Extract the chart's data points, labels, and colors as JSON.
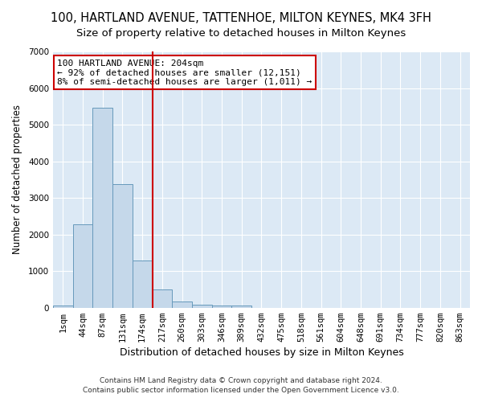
{
  "title": "100, HARTLAND AVENUE, TATTENHOE, MILTON KEYNES, MK4 3FH",
  "subtitle": "Size of property relative to detached houses in Milton Keynes",
  "xlabel": "Distribution of detached houses by size in Milton Keynes",
  "ylabel": "Number of detached properties",
  "footer_line1": "Contains HM Land Registry data © Crown copyright and database right 2024.",
  "footer_line2": "Contains public sector information licensed under the Open Government Licence v3.0.",
  "bar_labels": [
    "1sqm",
    "44sqm",
    "87sqm",
    "131sqm",
    "174sqm",
    "217sqm",
    "260sqm",
    "303sqm",
    "346sqm",
    "389sqm",
    "432sqm",
    "475sqm",
    "518sqm",
    "561sqm",
    "604sqm",
    "648sqm",
    "691sqm",
    "734sqm",
    "777sqm",
    "820sqm",
    "863sqm"
  ],
  "bar_values": [
    70,
    2270,
    5470,
    3380,
    1300,
    500,
    175,
    90,
    65,
    50,
    0,
    0,
    0,
    0,
    0,
    0,
    0,
    0,
    0,
    0,
    0
  ],
  "bar_color": "#c5d8ea",
  "bar_edge_color": "#6699bb",
  "vline_color": "#cc0000",
  "vline_x_index": 4.5,
  "annotation_text": "100 HARTLAND AVENUE: 204sqm\n← 92% of detached houses are smaller (12,151)\n8% of semi-detached houses are larger (1,011) →",
  "annotation_box_facecolor": "#ffffff",
  "annotation_box_edgecolor": "#cc0000",
  "ylim": [
    0,
    7000
  ],
  "yticks": [
    0,
    1000,
    2000,
    3000,
    4000,
    5000,
    6000,
    7000
  ],
  "fig_bg_color": "#ffffff",
  "plot_bg_color": "#dce9f5",
  "grid_color": "#ffffff",
  "title_fontsize": 10.5,
  "subtitle_fontsize": 9.5,
  "xlabel_fontsize": 9,
  "ylabel_fontsize": 8.5,
  "tick_fontsize": 7.5,
  "footer_fontsize": 6.5,
  "annotation_fontsize": 8
}
